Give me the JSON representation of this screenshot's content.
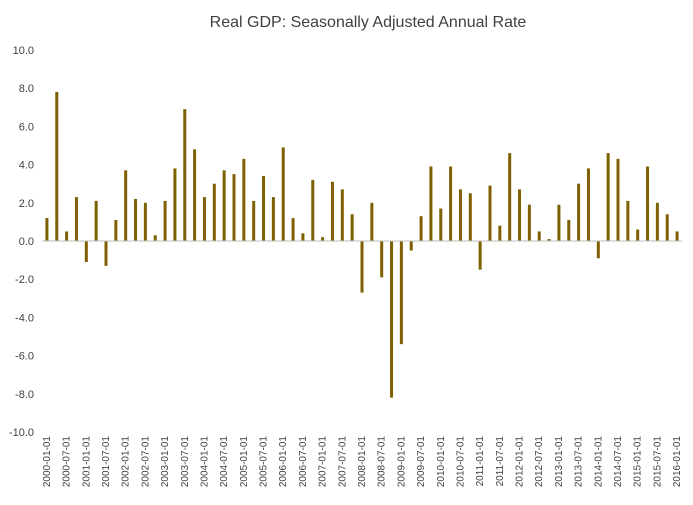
{
  "chart_data": {
    "type": "bar",
    "title": "Real GDP: Seasonally Adjusted Annual Rate",
    "xlabel": "",
    "ylabel": "",
    "ylim": [
      -10,
      10
    ],
    "yticks": [
      10,
      8,
      6,
      4,
      2,
      0,
      -2,
      -4,
      -6,
      -8,
      -10
    ],
    "ytick_labels": [
      "10.0",
      "8.0",
      "6.0",
      "4.0",
      "2.0",
      "0.0",
      "-2.0",
      "-4.0",
      "-6.0",
      "-8.0",
      "-10.0"
    ],
    "xtick_labels": [
      "2000-01-01",
      "2000-07-01",
      "2001-01-01",
      "2001-07-01",
      "2002-01-01",
      "2002-07-01",
      "2003-01-01",
      "2003-07-01",
      "2004-01-01",
      "2004-07-01",
      "2005-01-01",
      "2005-07-01",
      "2006-01-01",
      "2006-07-01",
      "2007-01-01",
      "2007-07-01",
      "2008-01-01",
      "2008-07-01",
      "2009-01-01",
      "2009-07-01",
      "2010-01-01",
      "2010-07-01",
      "2011-01-01",
      "2011-07-01",
      "2012-01-01",
      "2012-07-01",
      "2013-01-01",
      "2013-07-01",
      "2014-01-01",
      "2014-07-01",
      "2015-01-01",
      "2015-07-01",
      "2016-01-01"
    ],
    "bar_color": "#7f6000",
    "grid": false,
    "categories": [
      "2000-01-01",
      "2000-04-01",
      "2000-07-01",
      "2000-10-01",
      "2001-01-01",
      "2001-04-01",
      "2001-07-01",
      "2001-10-01",
      "2002-01-01",
      "2002-04-01",
      "2002-07-01",
      "2002-10-01",
      "2003-01-01",
      "2003-04-01",
      "2003-07-01",
      "2003-10-01",
      "2004-01-01",
      "2004-04-01",
      "2004-07-01",
      "2004-10-01",
      "2005-01-01",
      "2005-04-01",
      "2005-07-01",
      "2005-10-01",
      "2006-01-01",
      "2006-04-01",
      "2006-07-01",
      "2006-10-01",
      "2007-01-01",
      "2007-04-01",
      "2007-07-01",
      "2007-10-01",
      "2008-01-01",
      "2008-04-01",
      "2008-07-01",
      "2008-10-01",
      "2009-01-01",
      "2009-04-01",
      "2009-07-01",
      "2009-10-01",
      "2010-01-01",
      "2010-04-01",
      "2010-07-01",
      "2010-10-01",
      "2011-01-01",
      "2011-04-01",
      "2011-07-01",
      "2011-10-01",
      "2012-01-01",
      "2012-04-01",
      "2012-07-01",
      "2012-10-01",
      "2013-01-01",
      "2013-04-01",
      "2013-07-01",
      "2013-10-01",
      "2014-01-01",
      "2014-04-01",
      "2014-07-01",
      "2014-10-01",
      "2015-01-01",
      "2015-04-01",
      "2015-07-01",
      "2015-10-01",
      "2016-01-01"
    ],
    "values": [
      1.2,
      7.8,
      0.5,
      2.3,
      -1.1,
      2.1,
      -1.3,
      1.1,
      3.7,
      2.2,
      2.0,
      0.3,
      2.1,
      3.8,
      6.9,
      4.8,
      2.3,
      3.0,
      3.7,
      3.5,
      4.3,
      2.1,
      3.4,
      2.3,
      4.9,
      1.2,
      0.4,
      3.2,
      0.2,
      3.1,
      2.7,
      1.4,
      -2.7,
      2.0,
      -1.9,
      -8.2,
      -5.4,
      -0.5,
      1.3,
      3.9,
      1.7,
      3.9,
      2.7,
      2.5,
      -1.5,
      2.9,
      0.8,
      4.6,
      2.7,
      1.9,
      0.5,
      0.1,
      1.9,
      1.1,
      3.0,
      3.8,
      -0.9,
      4.6,
      4.3,
      2.1,
      0.6,
      3.9,
      2.0,
      1.4,
      0.5
    ]
  }
}
